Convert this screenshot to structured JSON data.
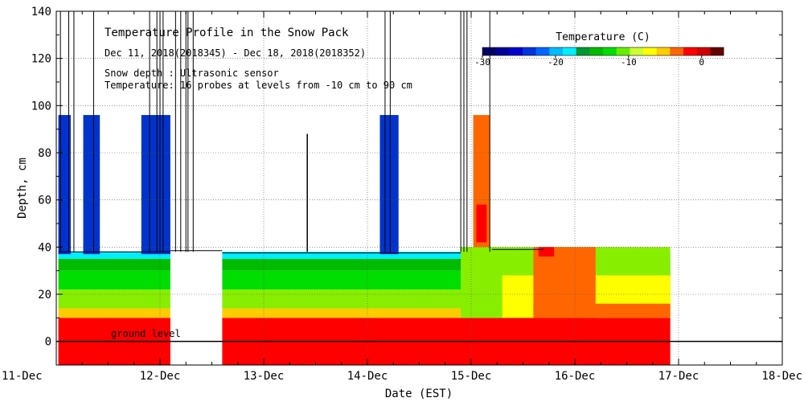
{
  "chart_data": {
    "type": "heatmap",
    "title": "Temperature Profile in the Snow Pack",
    "subtitle": "Dec 11, 2018(2018345) - Dec 18, 2018(2018352)",
    "notes": [
      "Snow depth : Ultrasonic sensor",
      "Temperature: 16 probes at levels from -10 cm to 90 cm"
    ],
    "xlabel": "Date (EST)",
    "ylabel": "Depth, cm",
    "x_ticks": [
      "11-Dec",
      "12-Dec",
      "13-Dec",
      "14-Dec",
      "15-Dec",
      "16-Dec",
      "17-Dec",
      "18-Dec"
    ],
    "xlim_days": [
      11,
      18
    ],
    "ylim": [
      -10,
      140
    ],
    "y_ticks": [
      0,
      20,
      40,
      60,
      80,
      100,
      120,
      140
    ],
    "grid": true,
    "ground_level_label": "ground level",
    "ground_level_y": 0,
    "legend": {
      "title": "Temperature (C)",
      "placement": "top-right",
      "range": [
        -30,
        3
      ],
      "tick_values": [
        -30,
        -20,
        -10,
        0
      ],
      "tick_labels": [
        "-30",
        "-20",
        "-10",
        "0"
      ],
      "colors": [
        "#000066",
        "#000099",
        "#0000cc",
        "#0033dd",
        "#0066ff",
        "#00bbff",
        "#00eeff",
        "#009933",
        "#00bb00",
        "#00dd00",
        "#66ee00",
        "#ccff33",
        "#ffff00",
        "#ffcc00",
        "#ff6600",
        "#ff0000",
        "#cc0000",
        "#660000"
      ]
    },
    "temperature_band_colors": {
      "deep_ground": "#ff0000",
      "band_10_15": "#ffcc00",
      "band_15_22": "#88ee00",
      "band_22_30": "#00dd00",
      "band_30_35": "#00bb00",
      "band_35_37": "#00eeff",
      "cold_column": "#0033cc",
      "warm_column": "#ff6600",
      "warm_peak": "#ff0000"
    }
  }
}
